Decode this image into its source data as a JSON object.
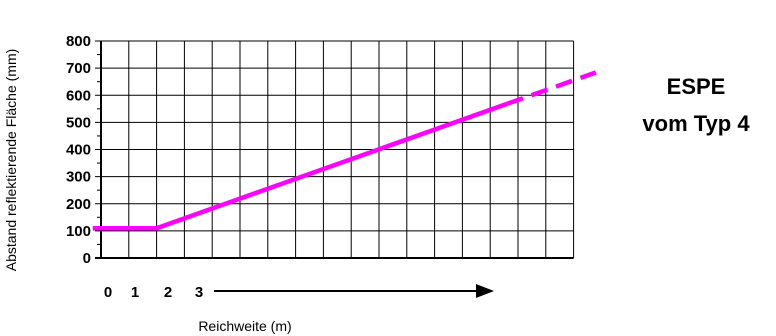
{
  "chart_data": {
    "type": "line",
    "xlabel": "Reichweite (m)",
    "ylabel": "Abstand reflektierende Fläche (mm)",
    "x_tick_labels": [
      "0",
      "1",
      "2",
      "3"
    ],
    "y_ticks": [
      0,
      100,
      200,
      300,
      400,
      500,
      600,
      700,
      800
    ],
    "xlim": [
      0,
      17
    ],
    "ylim": [
      0,
      800
    ],
    "grid": true,
    "series": [
      {
        "color": "#ff00ff",
        "style": "solid",
        "x": [
          -0.3,
          2,
          14.6
        ],
        "y": [
          110,
          110,
          568
        ]
      },
      {
        "color": "#ff00ff",
        "style": "dashed",
        "x": [
          14.6,
          17.8
        ],
        "y": [
          568,
          684
        ]
      }
    ],
    "annotation": {
      "lines": [
        "ESPE",
        "vom Typ 4"
      ]
    }
  }
}
